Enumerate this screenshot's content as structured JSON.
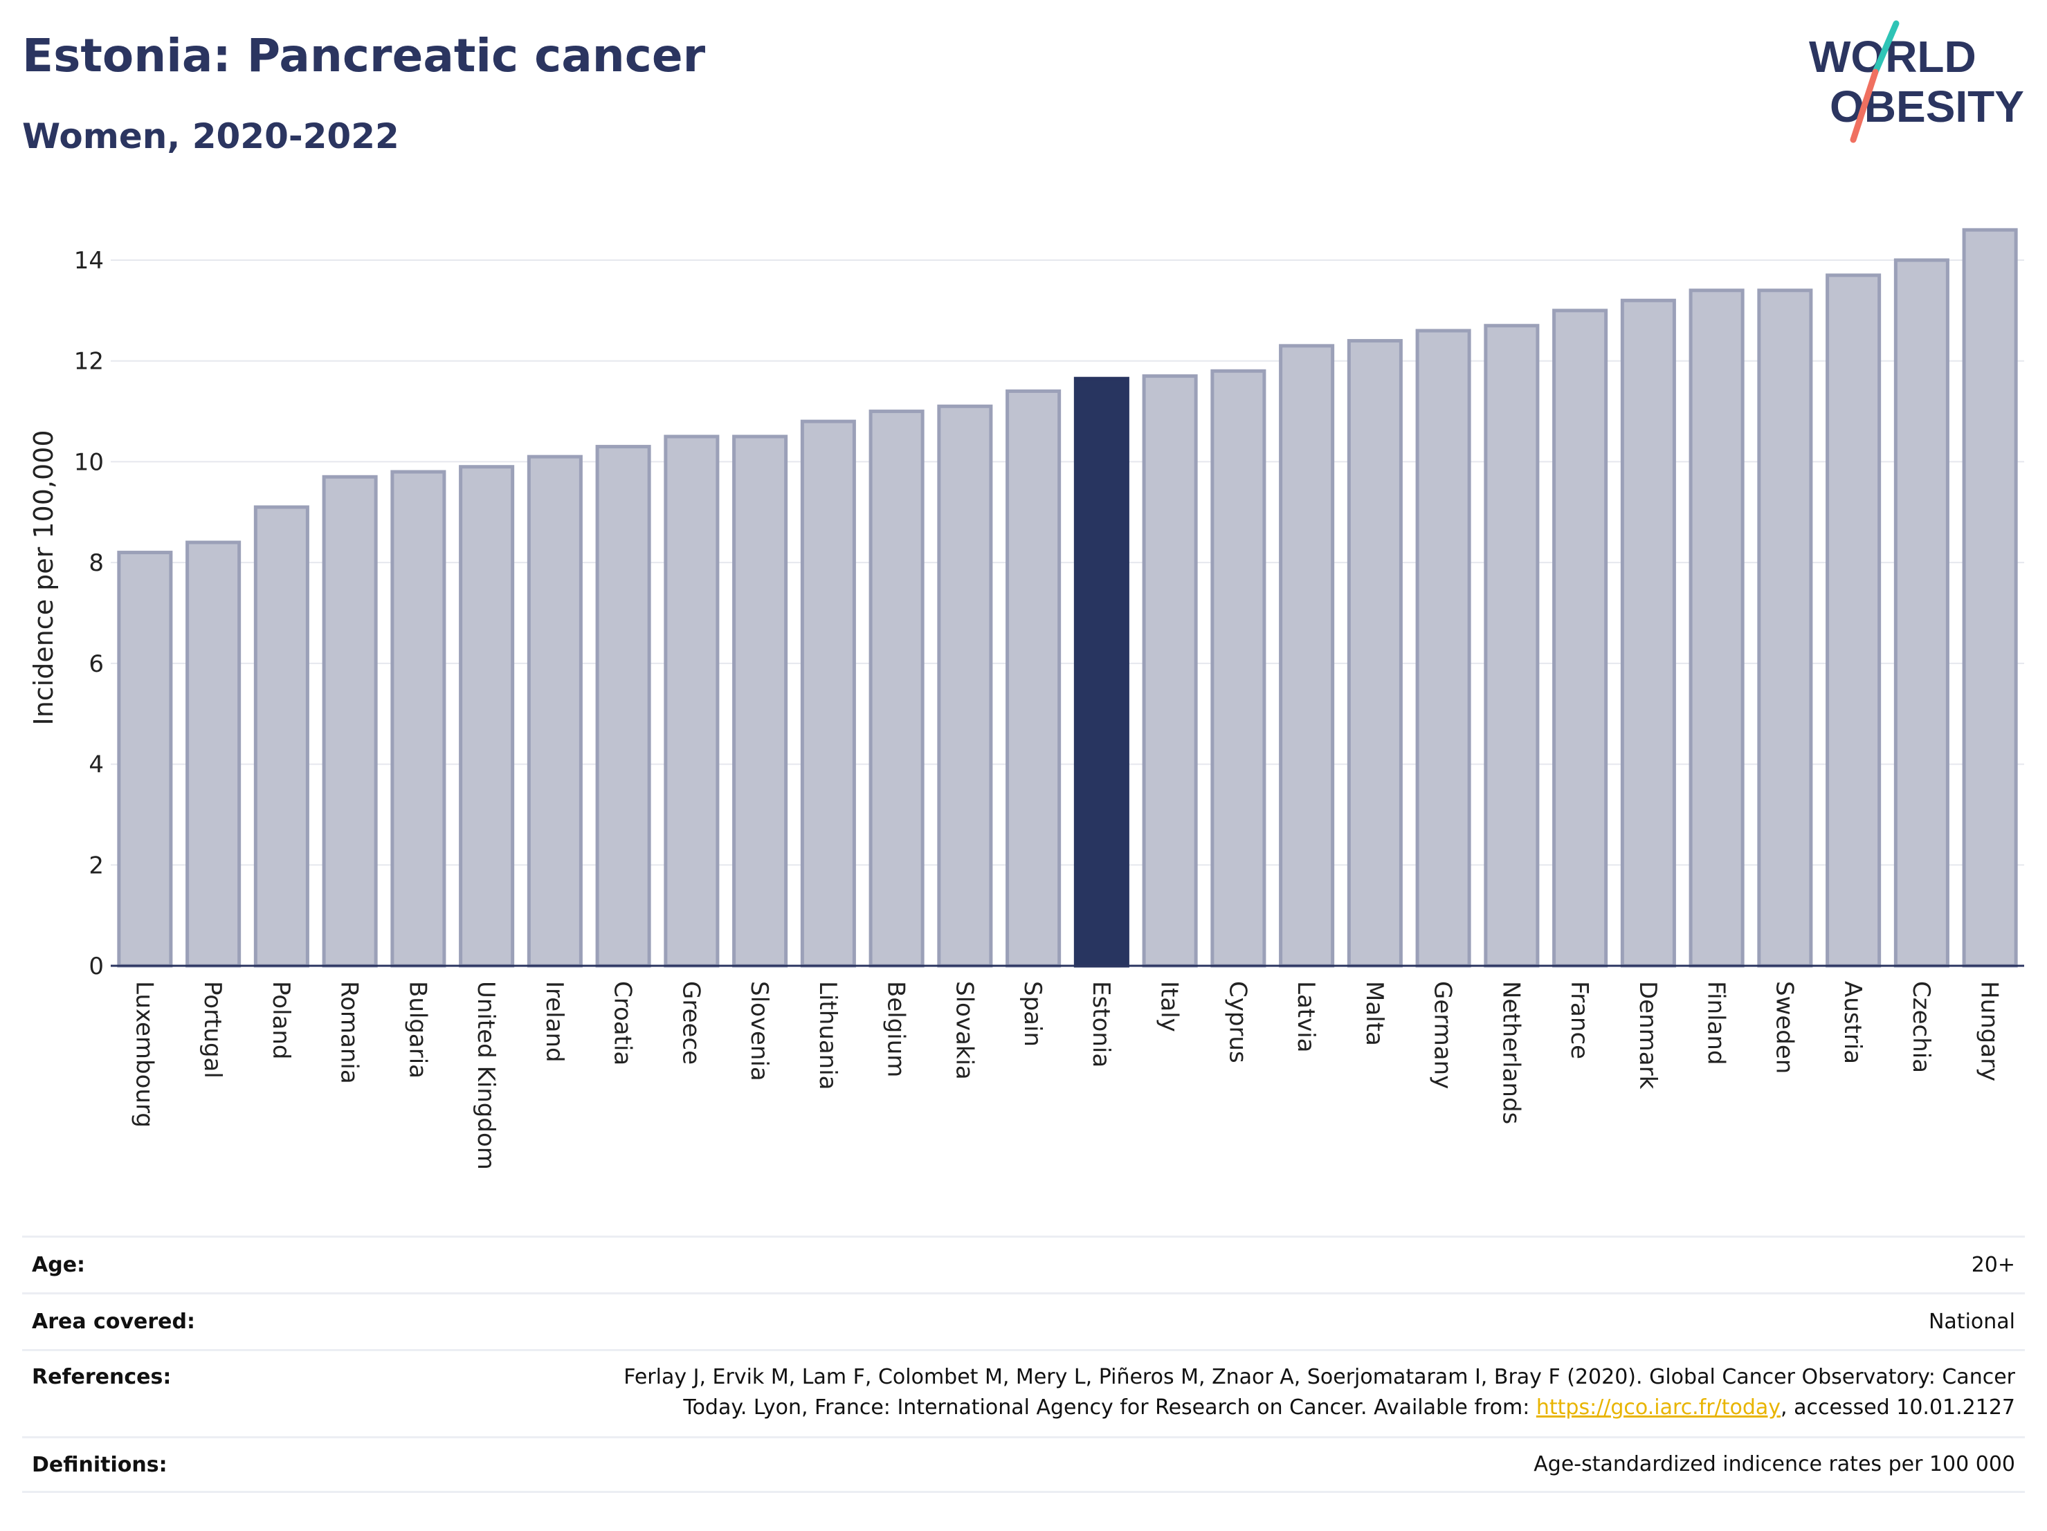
{
  "header": {
    "title": "Estonia: Pancreatic cancer",
    "subtitle": "Women, 2020-2022",
    "logo_line1": "WORLD",
    "logo_line2": "OBESITY"
  },
  "chart_data": {
    "type": "bar",
    "ylabel": "Incidence per 100,000",
    "ylim": [
      0,
      15
    ],
    "yticks": [
      0,
      2,
      4,
      6,
      8,
      10,
      12,
      14
    ],
    "grid": true,
    "highlight": "Estonia",
    "categories": [
      "Luxembourg",
      "Portugal",
      "Poland",
      "Romania",
      "Bulgaria",
      "United Kingdom",
      "Ireland",
      "Croatia",
      "Greece",
      "Slovenia",
      "Lithuania",
      "Belgium",
      "Slovakia",
      "Spain",
      "Estonia",
      "Italy",
      "Cyprus",
      "Latvia",
      "Malta",
      "Germany",
      "Netherlands",
      "France",
      "Denmark",
      "Finland",
      "Sweden",
      "Austria",
      "Czechia",
      "Hungary"
    ],
    "values": [
      8.2,
      8.4,
      9.1,
      9.7,
      9.8,
      9.9,
      10.1,
      10.3,
      10.5,
      10.5,
      10.8,
      11.0,
      11.1,
      11.4,
      11.65,
      11.7,
      11.8,
      12.3,
      12.4,
      12.6,
      12.7,
      13.0,
      13.2,
      13.4,
      13.4,
      13.7,
      14.0,
      14.6
    ]
  },
  "colors": {
    "bar": "#bfc2d0",
    "bar_border": "#9ba0b8",
    "highlight": "#283560",
    "brand_navy": "#2b3560",
    "brand_teal": "#2ec4b6",
    "brand_coral": "#f07060",
    "link": "#e8b400"
  },
  "footer": {
    "age_label": "Age:",
    "age_value": "20+",
    "area_label": "Area covered:",
    "area_value": "National",
    "references_label": "References:",
    "references_line1": "Ferlay J, Ervik M, Lam F, Colombet M, Mery L, Piñeros M, Znaor A, Soerjomataram I, Bray F (2020). Global Cancer Observatory: Cancer",
    "references_line2_pre": "Today. Lyon, France: International Agency for Research on Cancer. Available from: ",
    "references_link": "https://gco.iarc.fr/today",
    "references_line2_post": ", accessed 10.01.2127",
    "definitions_label": "Definitions:",
    "definitions_value": "Age-standardized indicence rates per 100 000"
  }
}
